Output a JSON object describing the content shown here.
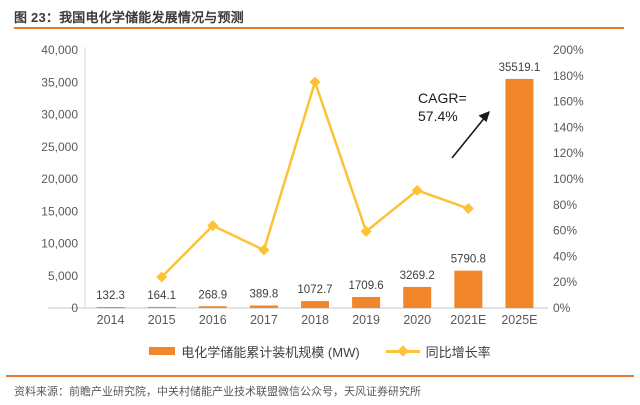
{
  "title": "图 23：我国电化学储能发展情况与预测",
  "source": "资料来源：前瞻产业研究院，中关村储能产业技术联盟微信公众号，天风证券研究所",
  "colors": {
    "bar": "#F1862B",
    "line": "#FDC235",
    "accent": "#E8792B",
    "axis_text": "#595959",
    "data_label": "#3f3f3f",
    "axis_line": "#D9D9D9",
    "annotation": "#1a1a1a"
  },
  "legend": [
    {
      "label": "电化学储能累计装机规模 (MW)",
      "type": "bar"
    },
    {
      "label": "同比增长率",
      "type": "line"
    }
  ],
  "annotation": {
    "line1": "CAGR=",
    "line2": "57.4%"
  },
  "chart_data": {
    "type": "bar",
    "categories": [
      "2014",
      "2015",
      "2016",
      "2017",
      "2018",
      "2019",
      "2020",
      "2021E",
      "2025E"
    ],
    "series": [
      {
        "name": "电化学储能累计装机规模 (MW)",
        "type": "bar",
        "axis": "left",
        "values": [
          132.3,
          164.1,
          268.9,
          389.8,
          1072.7,
          1709.6,
          3269.2,
          5790.8,
          35519.1
        ],
        "data_labels": [
          "132.3",
          "164.1",
          "268.9",
          "389.8",
          "1072.7",
          "1709.6",
          "3269.2",
          "5790.8",
          "35519.1"
        ]
      },
      {
        "name": "同比增长率",
        "type": "line",
        "axis": "right",
        "values": [
          null,
          24.0,
          63.9,
          45.0,
          175.2,
          59.4,
          91.2,
          77.1,
          null
        ]
      }
    ],
    "left_axis": {
      "min": 0,
      "max": 40000,
      "step": 5000
    },
    "right_axis": {
      "min": 0,
      "max": 200,
      "step": 20,
      "unit": "%"
    },
    "grid": false,
    "legend_position": "bottom",
    "annotation_text": "CAGR= 57.4%"
  }
}
